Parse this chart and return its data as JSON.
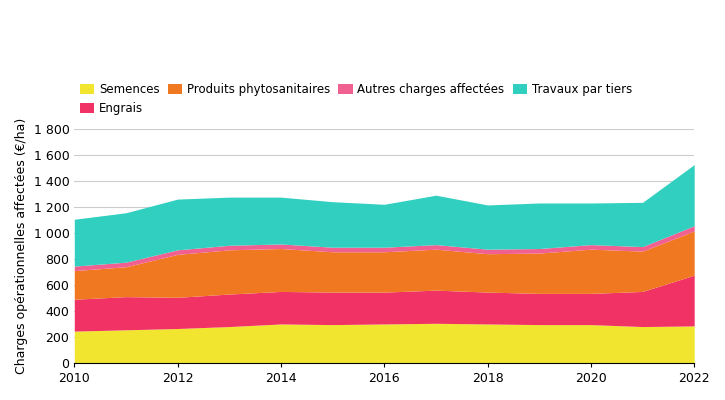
{
  "years": [
    2010,
    2011,
    2012,
    2013,
    2014,
    2015,
    2016,
    2017,
    2018,
    2019,
    2020,
    2021,
    2022
  ],
  "semences": [
    245,
    255,
    265,
    280,
    300,
    295,
    300,
    305,
    300,
    295,
    295,
    280,
    285
  ],
  "engrais": [
    245,
    255,
    240,
    250,
    250,
    250,
    245,
    255,
    245,
    240,
    240,
    270,
    390
  ],
  "produits_phyto": [
    220,
    230,
    330,
    340,
    330,
    310,
    310,
    315,
    295,
    310,
    340,
    310,
    340
  ],
  "autres_charges": [
    35,
    35,
    35,
    35,
    35,
    35,
    35,
    35,
    35,
    35,
    35,
    35,
    40
  ],
  "travaux_tiers": [
    360,
    380,
    390,
    370,
    360,
    350,
    330,
    380,
    340,
    350,
    320,
    340,
    470
  ],
  "colors": {
    "semences": "#f2e530",
    "engrais": "#f03264",
    "produits_phyto": "#f07820",
    "autres_charges": "#f06090",
    "travaux_tiers": "#30cfc0"
  },
  "legend_labels": [
    "Semences",
    "Engrais",
    "Produits phytosanitaires",
    "Autres charges affectées",
    "Travaux par tiers"
  ],
  "ylabel": "Charges opérationnelles affectées (€/ha)",
  "ylim": [
    0,
    1800
  ],
  "yticks": [
    0,
    200,
    400,
    600,
    800,
    1000,
    1200,
    1400,
    1600,
    1800
  ],
  "ytick_labels": [
    "0",
    "200",
    "400",
    "600",
    "800",
    "1 000",
    "1 200",
    "1 400",
    "1 600",
    "1 800"
  ],
  "xlim": [
    2010,
    2022
  ],
  "xticks": [
    2010,
    2012,
    2014,
    2016,
    2018,
    2020,
    2022
  ],
  "background_color": "#ffffff",
  "grid_color": "#cccccc"
}
